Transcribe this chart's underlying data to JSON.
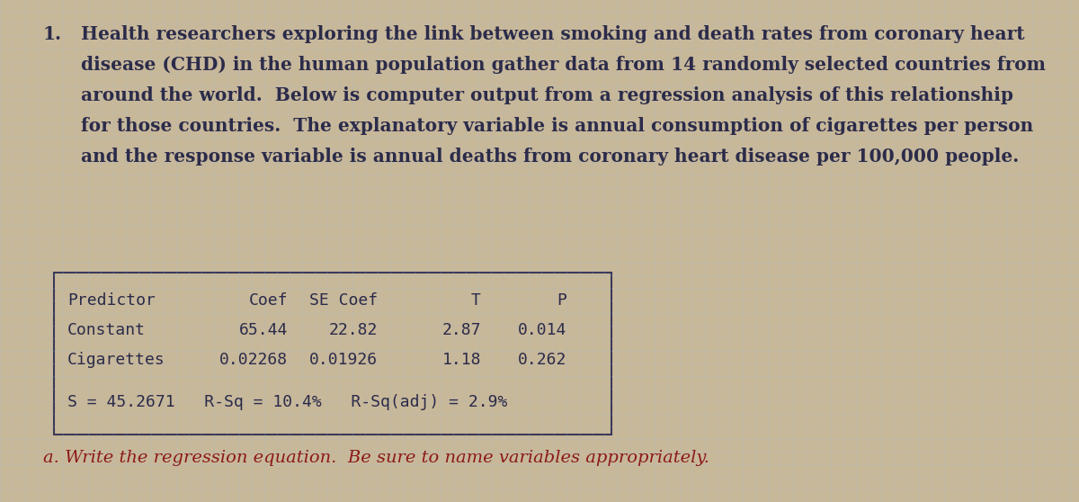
{
  "background_color": "#c8b89a",
  "figsize": [
    12.0,
    5.58
  ],
  "dpi": 100,
  "paragraph_number": "1.",
  "paragraph_line1": "Health researchers exploring the link between smoking and death rates from coronary heart",
  "paragraph_line2": "disease (CHD) in the human population gather data from 14 randomly selected countries from",
  "paragraph_line3": "around the world.  Below is computer output from a regression analysis of this relationship",
  "paragraph_line4": "for those countries.  The explanatory variable is annual consumption of cigarettes per person",
  "paragraph_line5": "and the response variable is annual deaths from coronary heart disease per 100,000 people.",
  "table_header_predictor": "Predictor",
  "table_header_coef": "Coef",
  "table_header_secoef": "SE Coef",
  "table_header_t": "T",
  "table_header_p": "P",
  "row1_predictor": "Constant",
  "row1_coef": "65.44",
  "row1_secoef": "22.82",
  "row1_t": "2.87",
  "row1_p": "0.014",
  "row2_predictor": "Cigarettes",
  "row2_coef": "0.02268",
  "row2_secoef": "0.01926",
  "row2_t": "1.18",
  "row2_p": "0.262",
  "stats_line": "S = 45.2671   R-Sq = 10.4%   R-Sq(adj) = 2.9%",
  "question_text": "a. Write the regression equation.  Be sure to name variables appropriately.",
  "main_text_color": "#2b2b4a",
  "table_text_color": "#2b2b4a",
  "question_text_color": "#8b1a1a",
  "border_color": "#3a3a5a",
  "main_font_size": 14.5,
  "table_font_size": 13.0,
  "question_font_size": 14.0,
  "number_font_size": 14.5,
  "grid_color_blue": "#9fb8c8",
  "grid_color_tan": "#c8b89a"
}
